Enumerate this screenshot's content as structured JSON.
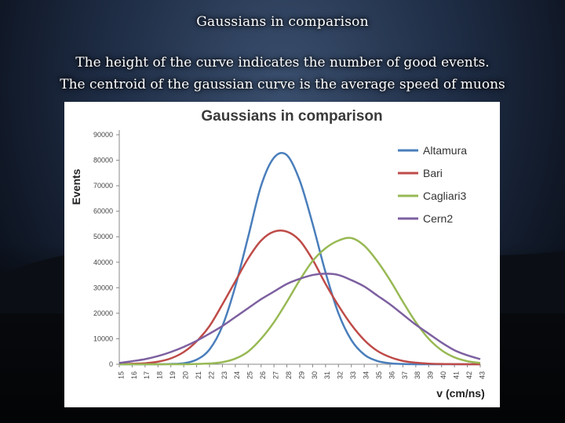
{
  "slide": {
    "title": "Gaussians in comparison",
    "subtitle_line1": "The height of the curve indicates the number of good events.",
    "subtitle_line2": "The centroid of the gaussian curve is the average speed of muons"
  },
  "chart_data": {
    "type": "line",
    "title": "Gaussians in comparison",
    "xlabel": "v (cm/ns)",
    "ylabel": "Events",
    "x": [
      15,
      16,
      17,
      18,
      19,
      20,
      21,
      22,
      23,
      24,
      25,
      26,
      27,
      28,
      29,
      30,
      31,
      32,
      33,
      34,
      35,
      36,
      37,
      38,
      39,
      40,
      41,
      42,
      43
    ],
    "ylim": [
      0,
      90000
    ],
    "yticks": [
      0,
      10000,
      20000,
      30000,
      40000,
      50000,
      60000,
      70000,
      80000,
      90000
    ],
    "grid": false,
    "legend": "top-right",
    "series": [
      {
        "name": "Altamura",
        "color": "#4a7ebb",
        "values": [
          0,
          0,
          0,
          0,
          100,
          400,
          1800,
          5800,
          15000,
          30500,
          50000,
          70000,
          81000,
          82000,
          72000,
          55000,
          36000,
          20000,
          9500,
          3800,
          1300,
          400,
          100,
          0,
          0,
          0,
          0,
          0,
          0
        ]
      },
      {
        "name": "Bari",
        "color": "#be4b48",
        "values": [
          100,
          200,
          400,
          1000,
          2300,
          4800,
          9000,
          15000,
          23500,
          32500,
          41500,
          48500,
          52000,
          52000,
          48500,
          41000,
          31500,
          23000,
          15500,
          9500,
          5300,
          2800,
          1300,
          600,
          250,
          100,
          50,
          0,
          0
        ]
      },
      {
        "name": "Cagliari3",
        "color": "#98b954",
        "values": [
          0,
          0,
          0,
          0,
          0,
          0,
          100,
          300,
          800,
          2200,
          5000,
          10000,
          16500,
          24500,
          33000,
          40500,
          45500,
          48500,
          49500,
          46500,
          40500,
          33000,
          24500,
          16500,
          10000,
          5500,
          2700,
          1200,
          500
        ]
      },
      {
        "name": "Cern2",
        "color": "#7d60a0",
        "values": [
          500,
          1200,
          2000,
          3200,
          4800,
          6800,
          9200,
          12000,
          15000,
          18500,
          22000,
          25500,
          28500,
          31500,
          33500,
          35000,
          35500,
          35000,
          33000,
          30500,
          27000,
          23500,
          19500,
          15500,
          12000,
          8500,
          5500,
          3500,
          2000
        ]
      }
    ]
  }
}
